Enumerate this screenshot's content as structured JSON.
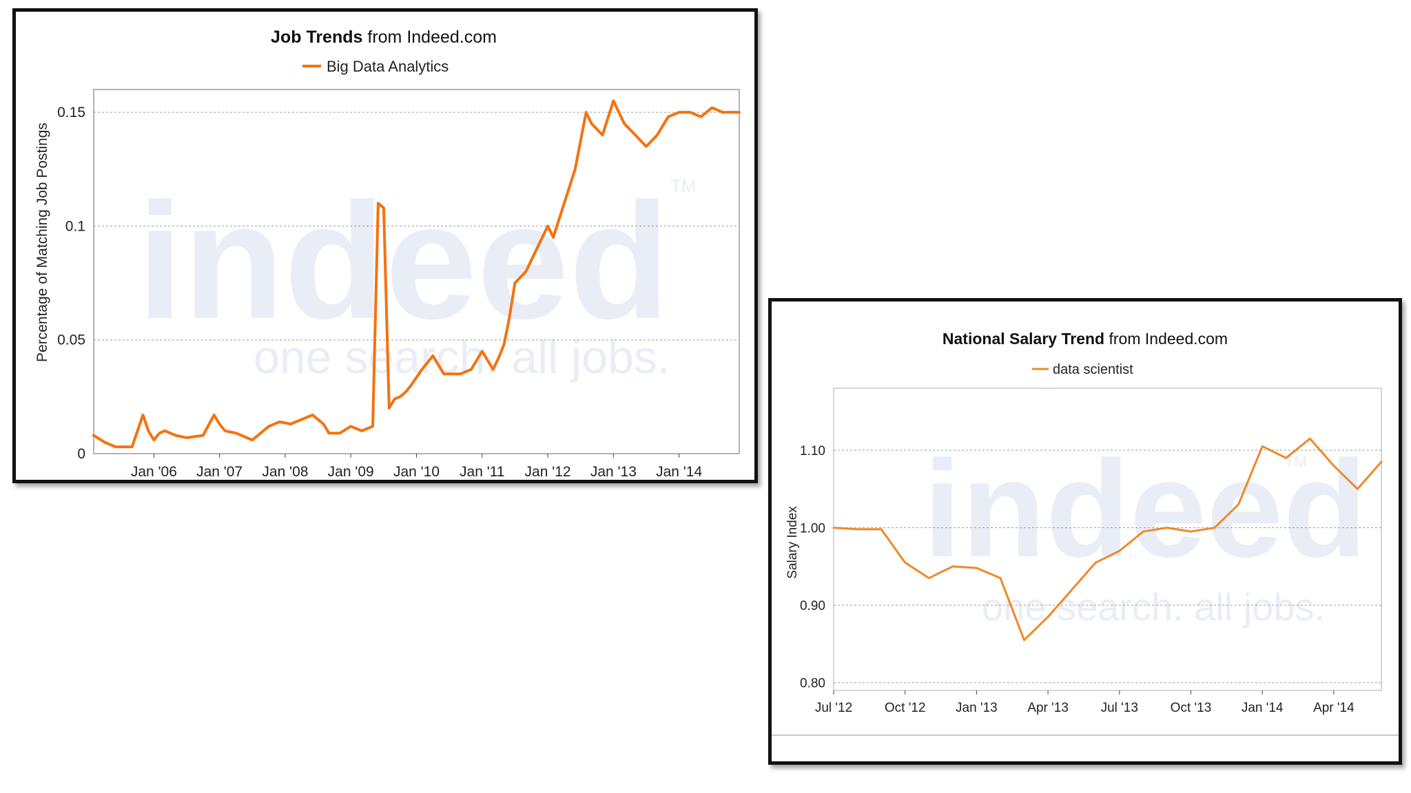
{
  "chart_data": [
    {
      "type": "line",
      "title_bold": "Job Trends",
      "title_rest": " from Indeed.com",
      "ylabel": "Percentage of Matching Job Postings",
      "legend": "Big Data Analytics",
      "watermark_logo": "indeed",
      "watermark_tm": "TM",
      "watermark_tagline": "one search. all jobs.",
      "color": "#f5720f",
      "x_tick_labels": [
        "Jan '06",
        "Jan '07",
        "Jan '08",
        "Jan '09",
        "Jan '10",
        "Jan '11",
        "Jan '12",
        "Jan '13",
        "Jan '14"
      ],
      "y_tick_labels": [
        "0",
        "0.05",
        "0.1",
        "0.15"
      ],
      "ylim": [
        0,
        0.16
      ],
      "xlim": [
        "2005-02",
        "2014-12"
      ],
      "series": [
        {
          "name": "Big Data Analytics",
          "x": [
            "2005-02",
            "2005-04",
            "2005-06",
            "2005-09",
            "2005-11",
            "2005-12",
            "2006-01",
            "2006-02",
            "2006-03",
            "2006-05",
            "2006-07",
            "2006-10",
            "2006-12",
            "2007-01",
            "2007-02",
            "2007-04",
            "2007-07",
            "2007-10",
            "2007-12",
            "2008-02",
            "2008-04",
            "2008-06",
            "2008-08",
            "2008-09",
            "2008-11",
            "2009-01",
            "2009-03",
            "2009-05",
            "2009-06",
            "2009-07",
            "2009-08",
            "2009-09",
            "2009-10",
            "2009-11",
            "2009-12",
            "2010-02",
            "2010-04",
            "2010-06",
            "2010-08",
            "2010-09",
            "2010-11",
            "2011-01",
            "2011-03",
            "2011-04",
            "2011-05",
            "2011-06",
            "2011-07",
            "2011-09",
            "2011-11",
            "2012-01",
            "2012-02",
            "2012-04",
            "2012-06",
            "2012-08",
            "2012-09",
            "2012-11",
            "2013-01",
            "2013-03",
            "2013-05",
            "2013-07",
            "2013-09",
            "2013-11",
            "2014-01",
            "2014-03",
            "2014-05",
            "2014-07",
            "2014-09",
            "2014-12"
          ],
          "y": [
            0.008,
            0.005,
            0.003,
            0.003,
            0.017,
            0.01,
            0.006,
            0.009,
            0.01,
            0.008,
            0.007,
            0.008,
            0.017,
            0.013,
            0.01,
            0.009,
            0.006,
            0.012,
            0.014,
            0.013,
            0.015,
            0.017,
            0.013,
            0.009,
            0.009,
            0.012,
            0.01,
            0.012,
            0.11,
            0.108,
            0.02,
            0.024,
            0.025,
            0.027,
            0.03,
            0.037,
            0.043,
            0.035,
            0.035,
            0.035,
            0.037,
            0.045,
            0.037,
            0.042,
            0.048,
            0.06,
            0.075,
            0.08,
            0.09,
            0.1,
            0.095,
            0.11,
            0.125,
            0.15,
            0.145,
            0.14,
            0.155,
            0.145,
            0.14,
            0.135,
            0.14,
            0.148,
            0.15,
            0.15,
            0.148,
            0.152,
            0.15,
            0.15
          ]
        }
      ]
    },
    {
      "type": "line",
      "title_bold": "National Salary Trend",
      "title_rest": " from Indeed.com",
      "ylabel": "Salary Index",
      "legend": "data scientist",
      "watermark_logo": "indeed",
      "watermark_tm": "TM",
      "watermark_tagline": "one search. all jobs.",
      "color": "#f0882a",
      "x_tick_labels": [
        "Jul '12",
        "Oct '12",
        "Jan '13",
        "Apr '13",
        "Jul '13",
        "Oct '13",
        "Jan '14",
        "Apr '14"
      ],
      "y_tick_labels": [
        "0.80",
        "0.90",
        "1.00",
        "1.10"
      ],
      "ylim": [
        0.79,
        1.18
      ],
      "xlim": [
        "2012-07",
        "2014-06"
      ],
      "series": [
        {
          "name": "data scientist",
          "x": [
            "2012-07",
            "2012-08",
            "2012-09",
            "2012-10",
            "2012-11",
            "2012-12",
            "2013-01",
            "2013-02",
            "2013-03",
            "2013-04",
            "2013-05",
            "2013-06",
            "2013-07",
            "2013-08",
            "2013-09",
            "2013-10",
            "2013-11",
            "2013-12",
            "2014-01",
            "2014-02",
            "2014-03",
            "2014-04",
            "2014-05",
            "2014-06"
          ],
          "y": [
            1.0,
            0.998,
            0.998,
            0.955,
            0.935,
            0.95,
            0.948,
            0.935,
            0.855,
            0.885,
            0.92,
            0.955,
            0.97,
            0.995,
            1.0,
            0.995,
            1.0,
            1.03,
            1.105,
            1.09,
            1.115,
            1.08,
            1.05,
            1.085
          ]
        }
      ]
    }
  ]
}
